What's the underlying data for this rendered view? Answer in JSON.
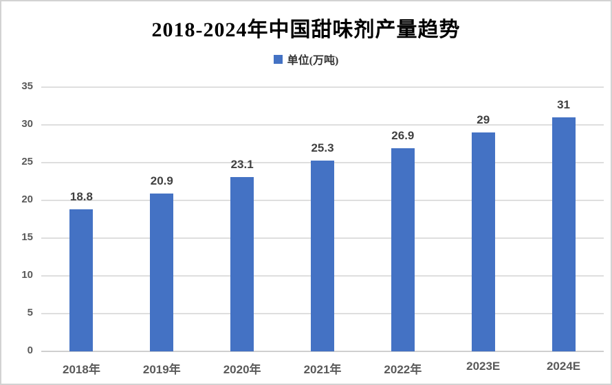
{
  "title": "2018-2024年中国甜味剂产量趋势",
  "legend": {
    "label": "单位(万吨)",
    "marker_color": "#4472C4"
  },
  "colors": {
    "bar": "#4472C4",
    "gridline": "#dedede",
    "axis_line": "#cfcfcf",
    "tick_label": "#595959",
    "data_label": "#404040",
    "title": "#000000",
    "frame_border": "#d2d2d2"
  },
  "chart_data": {
    "type": "bar",
    "title": "2018-2024年中国甜味剂产量趋势",
    "legend_entries": [
      "单位(万吨)"
    ],
    "legend_position": "top",
    "categories": [
      "2018年",
      "2019年",
      "2020年",
      "2021年",
      "2022年",
      "2023E",
      "2024E"
    ],
    "values": [
      18.8,
      20.9,
      23.1,
      25.3,
      26.9,
      29,
      31
    ],
    "data_labels": [
      "18.8",
      "20.9",
      "23.1",
      "25.3",
      "26.9",
      "29",
      "31"
    ],
    "xlabel": "",
    "ylabel": "",
    "ylim": [
      0,
      35
    ],
    "yticks": [
      0,
      5,
      10,
      15,
      20,
      25,
      30,
      35
    ],
    "grid": true
  }
}
